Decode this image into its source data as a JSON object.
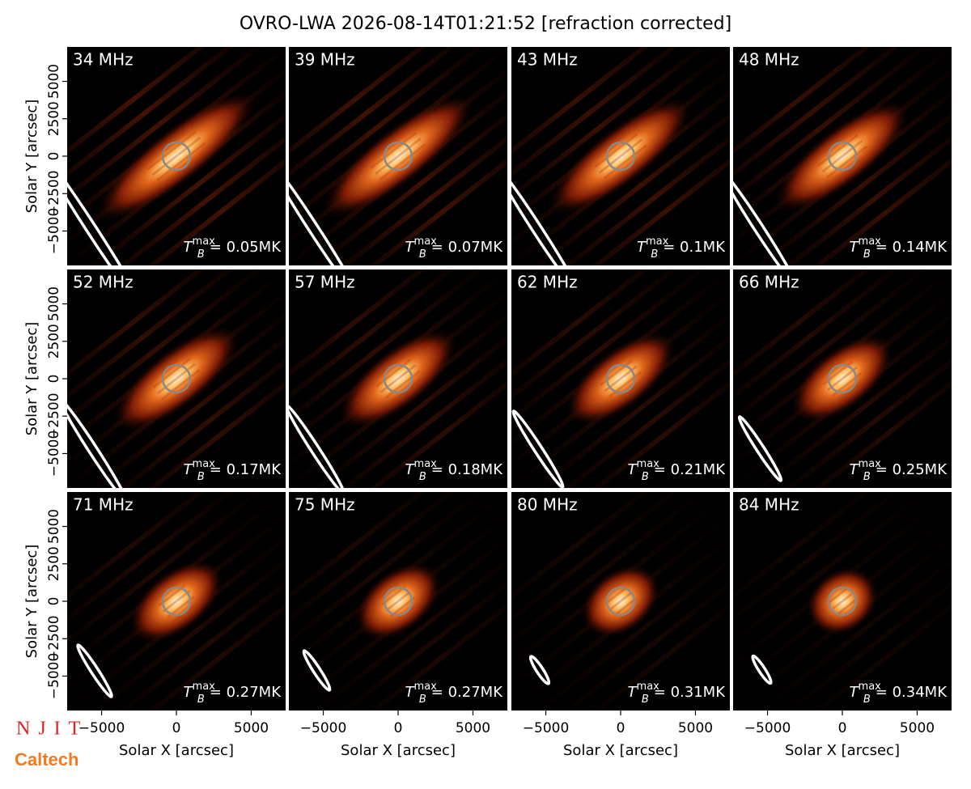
{
  "title": "OVRO-LWA 2026-08-14T01:21:52 [refraction corrected]",
  "xlabel": "Solar X [arcsec]",
  "ylabel": "Solar Y [arcsec]",
  "xlim": [
    -7300,
    7300
  ],
  "ylim": [
    -7300,
    7300
  ],
  "xticks": [
    {
      "value": -5000,
      "label": "−5000"
    },
    0,
    5000
  ],
  "yticks": [
    {
      "value": -5000,
      "label": "−5000"
    },
    {
      "value": -2500,
      "label": "−2500"
    },
    0,
    2500,
    5000
  ],
  "tb_symbol": "T",
  "tb_sub": "B",
  "tb_sup": "max",
  "panels": [
    {
      "label": "34 MHz",
      "tb": "= 0.05MK"
    },
    {
      "label": "39 MHz",
      "tb": "= 0.07MK"
    },
    {
      "label": "43 MHz",
      "tb": "= 0.1MK"
    },
    {
      "label": "48 MHz",
      "tb": "= 0.14MK"
    },
    {
      "label": "52 MHz",
      "tb": "= 0.17MK"
    },
    {
      "label": "57 MHz",
      "tb": "= 0.18MK"
    },
    {
      "label": "62 MHz",
      "tb": "= 0.21MK"
    },
    {
      "label": "66 MHz",
      "tb": "= 0.25MK"
    },
    {
      "label": "71 MHz",
      "tb": "= 0.27MK"
    },
    {
      "label": "75 MHz",
      "tb": "= 0.27MK"
    },
    {
      "label": "80 MHz",
      "tb": "= 0.31MK"
    },
    {
      "label": "84 MHz",
      "tb": "= 0.34MK"
    }
  ],
  "logos": {
    "njit": "NJIT",
    "caltech": "Caltech"
  }
}
